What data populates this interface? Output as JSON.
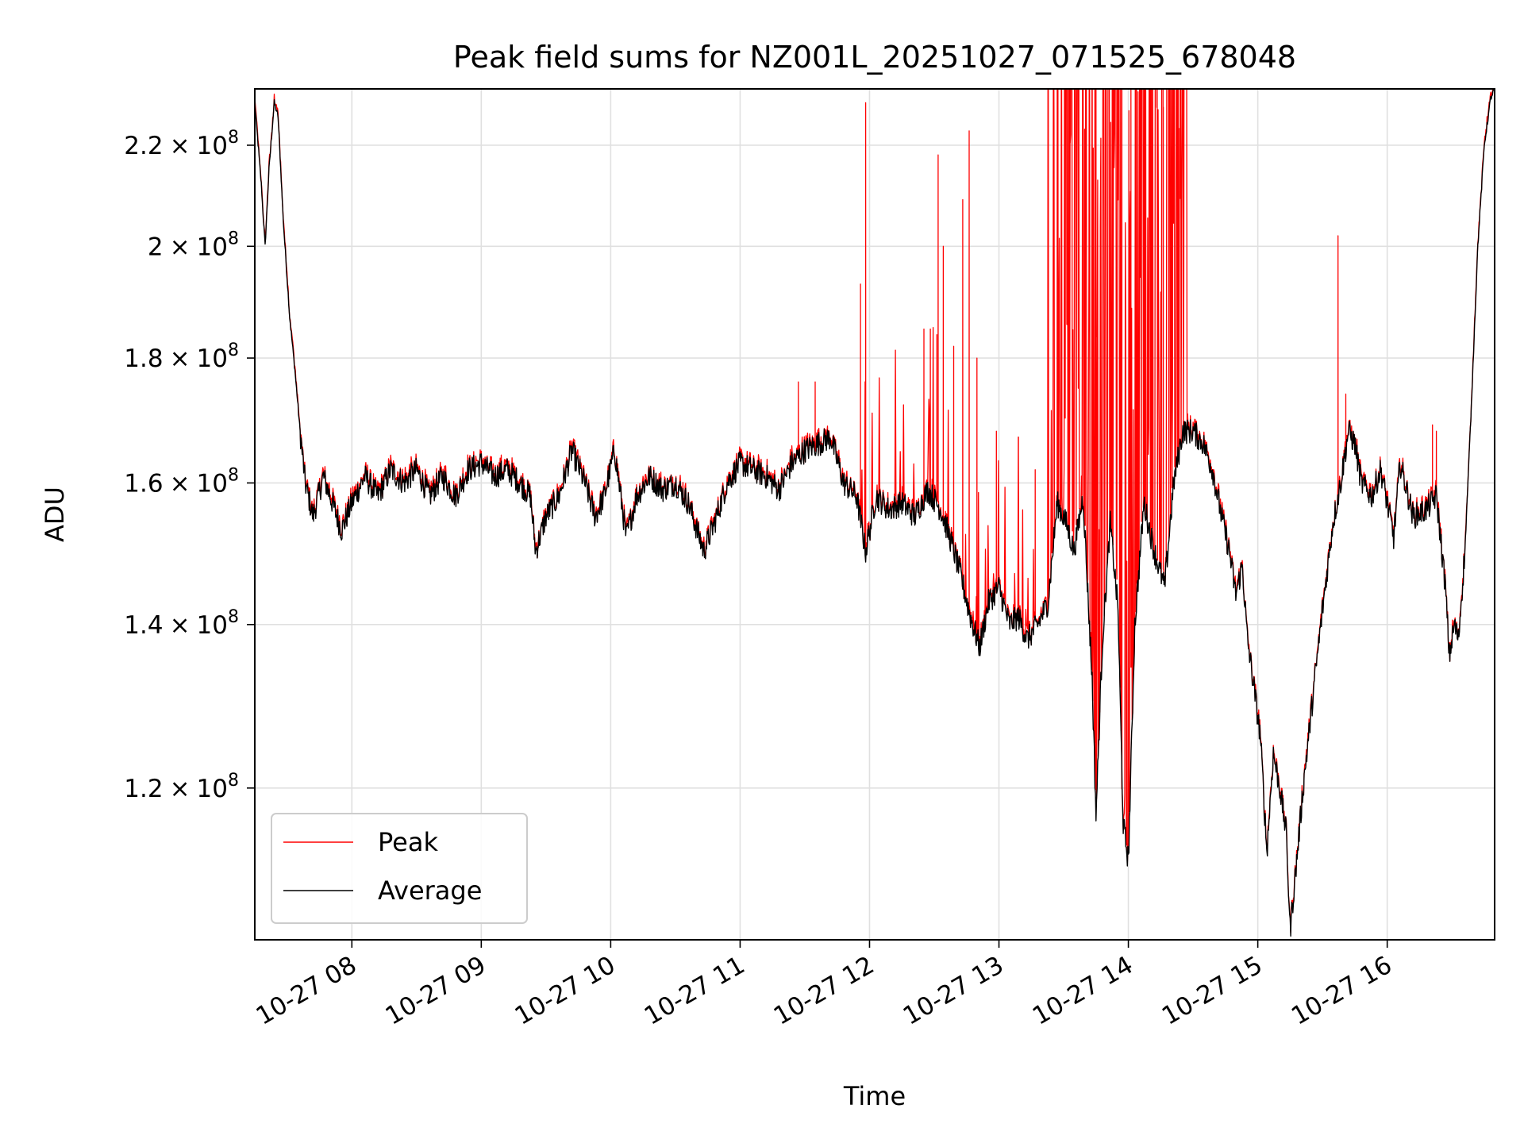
{
  "chart_data": {
    "type": "line",
    "title": "Peak field sums for NZ001L_20251027_071525_678048",
    "xlabel": "Time",
    "ylabel": "ADU",
    "yscale": "log",
    "ylim": [
      104000000,
      232000000
    ],
    "xlim_hours": [
      7.25,
      16.83
    ],
    "grid": true,
    "legend_position": "lower-left",
    "x_ticks": [
      {
        "hour": 8,
        "label": "10-27 08"
      },
      {
        "hour": 9,
        "label": "10-27 09"
      },
      {
        "hour": 10,
        "label": "10-27 10"
      },
      {
        "hour": 11,
        "label": "10-27 11"
      },
      {
        "hour": 12,
        "label": "10-27 12"
      },
      {
        "hour": 13,
        "label": "10-27 13"
      },
      {
        "hour": 14,
        "label": "10-27 14"
      },
      {
        "hour": 15,
        "label": "10-27 15"
      },
      {
        "hour": 16,
        "label": "10-27 16"
      }
    ],
    "y_ticks": [
      {
        "value": 120000000,
        "mantissa": "1.2",
        "times": "×",
        "base": "10",
        "exp": "8"
      },
      {
        "value": 140000000,
        "mantissa": "1.4",
        "times": "×",
        "base": "10",
        "exp": "8"
      },
      {
        "value": 160000000,
        "mantissa": "1.6",
        "times": "×",
        "base": "10",
        "exp": "8"
      },
      {
        "value": 180000000,
        "mantissa": "1.8",
        "times": "×",
        "base": "10",
        "exp": "8"
      },
      {
        "value": 200000000,
        "mantissa": "2",
        "times": "×",
        "base": "10",
        "exp": "8"
      },
      {
        "value": 220000000,
        "mantissa": "2.2",
        "times": "×",
        "base": "10",
        "exp": "8"
      }
    ],
    "series": [
      {
        "name": "Peak",
        "color": "#ff0000",
        "description": "Peak field sums; follows average closely, with frequent spikes above average between about 11:55 and 14:25 and occasional spikes near 15:40 and 16:20",
        "spikes": [
          {
            "hour": 11.45,
            "value": 176000000
          },
          {
            "hour": 11.58,
            "value": 176000000
          },
          {
            "hour": 11.93,
            "value": 193000000
          },
          {
            "hour": 11.97,
            "value": 229000000
          },
          {
            "hour": 12.42,
            "value": 185000000
          },
          {
            "hour": 12.47,
            "value": 185000000
          },
          {
            "hour": 12.52,
            "value": 184000000
          },
          {
            "hour": 12.53,
            "value": 218000000
          },
          {
            "hour": 12.57,
            "value": 200000000
          },
          {
            "hour": 12.65,
            "value": 182000000
          },
          {
            "hour": 12.72,
            "value": 209000000
          },
          {
            "hour": 12.77,
            "value": 223000000
          },
          {
            "hour": 12.83,
            "value": 180000000
          },
          {
            "hour": 12.98,
            "value": 168000000
          },
          {
            "hour": 13.15,
            "value": 161000000
          },
          {
            "hour": 13.28,
            "value": 162000000
          },
          {
            "hour": 13.38,
            "value": 232000000
          },
          {
            "hour": 13.45,
            "value": 232000000
          },
          {
            "hour": 13.55,
            "value": 232000000
          },
          {
            "hour": 13.65,
            "value": 232000000
          },
          {
            "hour": 13.75,
            "value": 232000000
          },
          {
            "hour": 13.85,
            "value": 232000000
          },
          {
            "hour": 13.95,
            "value": 232000000
          },
          {
            "hour": 14.02,
            "value": 232000000
          },
          {
            "hour": 14.12,
            "value": 220000000
          },
          {
            "hour": 14.22,
            "value": 228000000
          },
          {
            "hour": 14.27,
            "value": 228000000
          },
          {
            "hour": 14.4,
            "value": 232000000
          },
          {
            "hour": 15.62,
            "value": 202000000
          },
          {
            "hour": 15.68,
            "value": 174000000
          },
          {
            "hour": 16.35,
            "value": 169000000
          },
          {
            "hour": 16.38,
            "value": 168000000
          }
        ]
      },
      {
        "name": "Average",
        "color": "#000000",
        "points": [
          [
            7.25,
            229000000
          ],
          [
            7.3,
            212000000
          ],
          [
            7.33,
            200000000
          ],
          [
            7.36,
            215000000
          ],
          [
            7.4,
            229000000
          ],
          [
            7.43,
            226000000
          ],
          [
            7.47,
            205000000
          ],
          [
            7.52,
            187000000
          ],
          [
            7.56,
            178000000
          ],
          [
            7.6,
            168000000
          ],
          [
            7.64,
            160000000
          ],
          [
            7.7,
            155000000
          ],
          [
            7.78,
            161000000
          ],
          [
            7.85,
            157000000
          ],
          [
            7.92,
            153000000
          ],
          [
            8.0,
            157000000
          ],
          [
            8.1,
            161000000
          ],
          [
            8.2,
            158000000
          ],
          [
            8.3,
            162000000
          ],
          [
            8.4,
            160000000
          ],
          [
            8.5,
            162000000
          ],
          [
            8.6,
            158000000
          ],
          [
            8.7,
            161000000
          ],
          [
            8.8,
            158000000
          ],
          [
            8.9,
            162000000
          ],
          [
            9.0,
            163000000
          ],
          [
            9.1,
            161000000
          ],
          [
            9.2,
            162000000
          ],
          [
            9.3,
            160000000
          ],
          [
            9.38,
            158000000
          ],
          [
            9.42,
            150000000
          ],
          [
            9.5,
            155000000
          ],
          [
            9.6,
            158000000
          ],
          [
            9.7,
            165000000
          ],
          [
            9.8,
            160000000
          ],
          [
            9.88,
            155000000
          ],
          [
            9.95,
            158000000
          ],
          [
            10.03,
            165000000
          ],
          [
            10.12,
            152000000
          ],
          [
            10.2,
            158000000
          ],
          [
            10.3,
            161000000
          ],
          [
            10.4,
            159000000
          ],
          [
            10.5,
            160000000
          ],
          [
            10.6,
            157000000
          ],
          [
            10.72,
            150000000
          ],
          [
            10.8,
            154000000
          ],
          [
            10.9,
            160000000
          ],
          [
            11.0,
            163000000
          ],
          [
            11.1,
            162000000
          ],
          [
            11.2,
            161000000
          ],
          [
            11.3,
            159000000
          ],
          [
            11.4,
            163000000
          ],
          [
            11.5,
            165000000
          ],
          [
            11.6,
            166000000
          ],
          [
            11.7,
            167000000
          ],
          [
            11.8,
            160000000
          ],
          [
            11.9,
            158000000
          ],
          [
            11.97,
            150000000
          ],
          [
            12.05,
            158000000
          ],
          [
            12.15,
            156000000
          ],
          [
            12.25,
            157000000
          ],
          [
            12.35,
            155000000
          ],
          [
            12.45,
            159000000
          ],
          [
            12.55,
            156000000
          ],
          [
            12.62,
            152000000
          ],
          [
            12.7,
            147000000
          ],
          [
            12.78,
            141000000
          ],
          [
            12.85,
            137000000
          ],
          [
            12.92,
            143000000
          ],
          [
            13.0,
            145000000
          ],
          [
            13.08,
            140000000
          ],
          [
            13.15,
            141000000
          ],
          [
            13.22,
            138000000
          ],
          [
            13.3,
            140000000
          ],
          [
            13.38,
            143000000
          ],
          [
            13.45,
            157000000
          ],
          [
            13.52,
            154000000
          ],
          [
            13.58,
            150000000
          ],
          [
            13.65,
            158000000
          ],
          [
            13.72,
            133000000
          ],
          [
            13.75,
            117000000
          ],
          [
            13.8,
            138000000
          ],
          [
            13.86,
            154000000
          ],
          [
            13.92,
            142000000
          ],
          [
            13.96,
            116000000
          ],
          [
            14.0,
            112000000
          ],
          [
            14.05,
            140000000
          ],
          [
            14.12,
            157000000
          ],
          [
            14.2,
            150000000
          ],
          [
            14.28,
            145000000
          ],
          [
            14.35,
            160000000
          ],
          [
            14.42,
            168000000
          ],
          [
            14.5,
            168000000
          ],
          [
            14.58,
            166000000
          ],
          [
            14.65,
            162000000
          ],
          [
            14.72,
            155000000
          ],
          [
            14.78,
            150000000
          ],
          [
            14.83,
            144000000
          ],
          [
            14.88,
            148000000
          ],
          [
            14.92,
            138000000
          ],
          [
            14.97,
            132000000
          ],
          [
            15.02,
            126000000
          ],
          [
            15.07,
            113000000
          ],
          [
            15.12,
            124000000
          ],
          [
            15.17,
            120000000
          ],
          [
            15.22,
            115000000
          ],
          [
            15.25,
            105000000
          ],
          [
            15.3,
            112000000
          ],
          [
            15.35,
            120000000
          ],
          [
            15.42,
            130000000
          ],
          [
            15.5,
            142000000
          ],
          [
            15.58,
            154000000
          ],
          [
            15.64,
            160000000
          ],
          [
            15.7,
            168000000
          ],
          [
            15.75,
            166000000
          ],
          [
            15.8,
            160000000
          ],
          [
            15.88,
            158000000
          ],
          [
            15.95,
            162000000
          ],
          [
            16.0,
            157000000
          ],
          [
            16.05,
            152000000
          ],
          [
            16.1,
            163000000
          ],
          [
            16.2,
            155000000
          ],
          [
            16.3,
            156000000
          ],
          [
            16.38,
            158000000
          ],
          [
            16.45,
            145000000
          ],
          [
            16.48,
            136000000
          ],
          [
            16.52,
            140000000
          ],
          [
            16.55,
            138000000
          ],
          [
            16.6,
            150000000
          ],
          [
            16.65,
            172000000
          ],
          [
            16.7,
            200000000
          ],
          [
            16.75,
            220000000
          ],
          [
            16.8,
            230000000
          ],
          [
            16.83,
            232000000
          ]
        ]
      }
    ]
  }
}
